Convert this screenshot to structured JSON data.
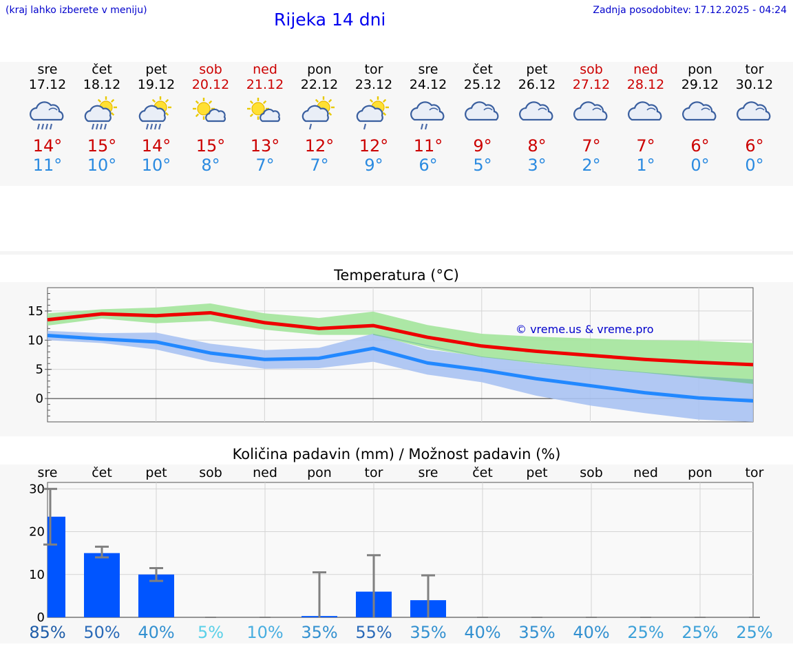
{
  "header": {
    "hint": "(kraj lahko izberete v meniju)",
    "title": "Rijeka 14 dni",
    "updated": "Zadnja posodobitev: 17.12.2025 - 04:24"
  },
  "days": [
    {
      "name": "sre",
      "date": "17.12",
      "weekend": false,
      "icon": "cloud-heavy-rain-icon",
      "sun": false,
      "rain": 3,
      "tmax": "14°",
      "tmin": "11°"
    },
    {
      "name": "čet",
      "date": "18.12",
      "weekend": false,
      "icon": "sun-cloud-heavy-rain-icon",
      "sun": true,
      "rain": 3,
      "tmax": "15°",
      "tmin": "10°"
    },
    {
      "name": "pet",
      "date": "19.12",
      "weekend": false,
      "icon": "sun-cloud-heavy-rain-icon",
      "sun": true,
      "rain": 3,
      "tmax": "14°",
      "tmin": "10°"
    },
    {
      "name": "sob",
      "date": "20.12",
      "weekend": true,
      "icon": "sun-small-cloud-icon",
      "sun": true,
      "rain": 0,
      "tmax": "15°",
      "tmin": "8°"
    },
    {
      "name": "ned",
      "date": "21.12",
      "weekend": true,
      "icon": "sun-small-cloud-icon",
      "sun": true,
      "rain": 0,
      "tmax": "13°",
      "tmin": "7°"
    },
    {
      "name": "pon",
      "date": "22.12",
      "weekend": false,
      "icon": "sun-cloud-light-rain-icon",
      "sun": true,
      "rain": 1,
      "tmax": "12°",
      "tmin": "7°"
    },
    {
      "name": "tor",
      "date": "23.12",
      "weekend": false,
      "icon": "sun-cloud-light-rain-icon",
      "sun": true,
      "rain": 1,
      "tmax": "12°",
      "tmin": "9°"
    },
    {
      "name": "sre",
      "date": "24.12",
      "weekend": false,
      "icon": "cloud-light-rain-icon",
      "sun": false,
      "rain": 2,
      "tmax": "11°",
      "tmin": "6°"
    },
    {
      "name": "čet",
      "date": "25.12",
      "weekend": false,
      "icon": "cloud-icon",
      "sun": false,
      "rain": 0,
      "tmax": "9°",
      "tmin": "5°"
    },
    {
      "name": "pet",
      "date": "26.12",
      "weekend": false,
      "icon": "cloud-icon",
      "sun": false,
      "rain": 0,
      "tmax": "8°",
      "tmin": "3°"
    },
    {
      "name": "sob",
      "date": "27.12",
      "weekend": true,
      "icon": "cloud-icon",
      "sun": false,
      "rain": 0,
      "tmax": "7°",
      "tmin": "2°"
    },
    {
      "name": "ned",
      "date": "28.12",
      "weekend": true,
      "icon": "cloud-icon",
      "sun": false,
      "rain": 0,
      "tmax": "7°",
      "tmin": "1°"
    },
    {
      "name": "pon",
      "date": "29.12",
      "weekend": false,
      "icon": "cloud-icon",
      "sun": false,
      "rain": 0,
      "tmax": "6°",
      "tmin": "0°"
    },
    {
      "name": "tor",
      "date": "30.12",
      "weekend": false,
      "icon": "cloud-icon",
      "sun": false,
      "rain": 0,
      "tmax": "6°",
      "tmin": "0°"
    }
  ],
  "colors": {
    "max_line": "#ee0000",
    "max_band": "#a8e6a0",
    "min_line": "#2288ff",
    "min_band": "#a8c2f2",
    "overlap_band": "#7cc4a0",
    "bar": "#0055ff",
    "whisker": "#808080",
    "watermark": "#0000cc"
  },
  "chart_data": [
    {
      "type": "line",
      "title": "Temperatura (°C)",
      "watermark": "© vreme.us & vreme.pro",
      "x": [
        0,
        1,
        2,
        3,
        4,
        5,
        6,
        7,
        8,
        9,
        10,
        11,
        12,
        13
      ],
      "ylim": [
        -4,
        19
      ],
      "yticks": [
        0,
        5,
        10,
        15
      ],
      "series": [
        {
          "name": "max",
          "values": [
            13.5,
            14.5,
            14.2,
            14.7,
            13.0,
            12.0,
            12.5,
            10.5,
            9.0,
            8.1,
            7.4,
            6.7,
            6.2,
            5.8
          ],
          "band_low": [
            12.5,
            13.7,
            12.9,
            13.3,
            11.8,
            10.9,
            10.9,
            8.6,
            7.1,
            6.0,
            5.2,
            4.4,
            3.5,
            2.5
          ],
          "band_high": [
            14.6,
            15.3,
            15.6,
            16.3,
            14.6,
            13.8,
            14.9,
            12.6,
            11.1,
            10.6,
            10.3,
            10.0,
            9.9,
            9.5
          ]
        },
        {
          "name": "min",
          "values": [
            10.8,
            10.2,
            9.7,
            7.8,
            6.7,
            6.9,
            8.6,
            6.1,
            4.9,
            3.4,
            2.2,
            1.0,
            0.1,
            -0.4
          ],
          "band_low": [
            10.0,
            9.5,
            8.4,
            6.3,
            5.1,
            5.2,
            6.3,
            4.1,
            2.8,
            0.5,
            -1.2,
            -2.5,
            -3.6,
            -4.0
          ],
          "band_high": [
            11.6,
            11.2,
            11.3,
            9.4,
            8.3,
            8.7,
            11.1,
            8.4,
            7.2,
            6.0,
            5.3,
            4.5,
            3.8,
            3.3
          ]
        }
      ]
    },
    {
      "type": "bar",
      "title": "Količina padavin (mm) / Možnost padavin (%)",
      "categories": [
        "sre",
        "čet",
        "pet",
        "sob",
        "ned",
        "pon",
        "tor",
        "sre",
        "čet",
        "pet",
        "sob",
        "ned",
        "pon",
        "tor"
      ],
      "values": [
        23.5,
        15,
        10,
        0,
        0,
        0.3,
        6,
        4,
        0,
        0,
        0,
        0,
        0,
        0
      ],
      "err_low": [
        17,
        14,
        8.5,
        0,
        0,
        0,
        0,
        0,
        0,
        0,
        0,
        0,
        0,
        0
      ],
      "err_high": [
        30,
        16.5,
        11.5,
        0,
        0,
        10.5,
        14.5,
        9.8,
        0,
        0,
        0,
        0,
        0,
        0
      ],
      "ylim": [
        0,
        31.5
      ],
      "yticks": [
        0,
        10,
        20,
        30
      ],
      "probability": [
        "85%",
        "50%",
        "40%",
        "5%",
        "10%",
        "35%",
        "55%",
        "35%",
        "40%",
        "35%",
        "40%",
        "25%",
        "25%",
        "25%"
      ],
      "probability_values": [
        85,
        50,
        40,
        5,
        10,
        35,
        55,
        35,
        40,
        35,
        40,
        25,
        25,
        25
      ]
    }
  ]
}
